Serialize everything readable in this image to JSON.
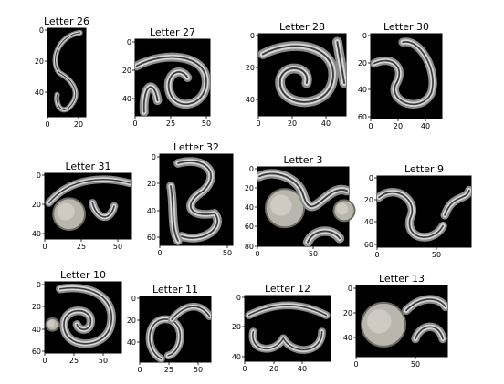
{
  "chart_data": [
    {
      "type": "image",
      "title": "Letter 26",
      "x_ticks": [
        "0",
        "20"
      ],
      "y_ticks": [
        "0",
        "20",
        "40"
      ]
    },
    {
      "type": "image",
      "title": "Letter 27",
      "x_ticks": [
        "0",
        "25",
        "50"
      ],
      "y_ticks": [
        "0",
        "20",
        "40"
      ]
    },
    {
      "type": "image",
      "title": "Letter 28",
      "x_ticks": [
        "0",
        "20",
        "40"
      ],
      "y_ticks": [
        "0",
        "20",
        "40"
      ]
    },
    {
      "type": "image",
      "title": "Letter 30",
      "x_ticks": [
        "0",
        "20",
        "40"
      ],
      "y_ticks": [
        "0",
        "20",
        "40",
        "60"
      ]
    },
    {
      "type": "image",
      "title": "Letter 31",
      "x_ticks": [
        "0",
        "25",
        "50"
      ],
      "y_ticks": [
        "0",
        "20",
        "40"
      ]
    },
    {
      "type": "image",
      "title": "Letter 32",
      "x_ticks": [
        "0",
        "50"
      ],
      "y_ticks": [
        "0",
        "20",
        "40",
        "60"
      ]
    },
    {
      "type": "image",
      "title": "Letter 3",
      "x_ticks": [
        "0",
        "50"
      ],
      "y_ticks": [
        "0",
        "20",
        "40",
        "60",
        "80"
      ]
    },
    {
      "type": "image",
      "title": "Letter 9",
      "x_ticks": [
        "0",
        "50"
      ],
      "y_ticks": [
        "0",
        "20",
        "40",
        "60"
      ]
    },
    {
      "type": "image",
      "title": "Letter 10",
      "x_ticks": [
        "0",
        "25",
        "50"
      ],
      "y_ticks": [
        "0",
        "20",
        "40",
        "60"
      ]
    },
    {
      "type": "image",
      "title": "Letter 11",
      "x_ticks": [
        "0",
        "25",
        "50"
      ],
      "y_ticks": [
        "0",
        "20",
        "40"
      ]
    },
    {
      "type": "image",
      "title": "Letter 12",
      "x_ticks": [
        "0",
        "20",
        "40"
      ],
      "y_ticks": [
        "0",
        "20",
        "40"
      ]
    },
    {
      "type": "image",
      "title": "Letter 13",
      "x_ticks": [
        "0",
        "50"
      ],
      "y_ticks": [
        "0",
        "20",
        "40"
      ]
    }
  ]
}
